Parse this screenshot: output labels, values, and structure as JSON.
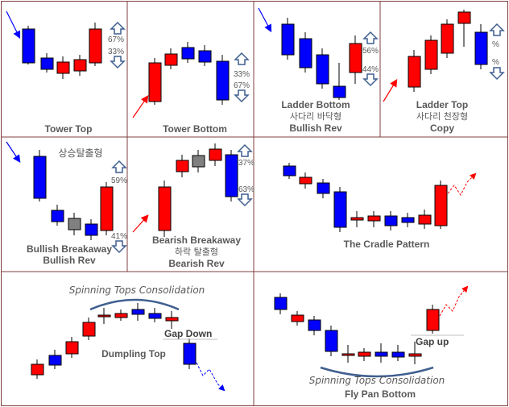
{
  "colors": {
    "bull": "#ff0000",
    "bear": "#0000ff",
    "neutral": "#808080",
    "grid": "#7f3f3f",
    "arrow": "#3f5f8f"
  },
  "panels": {
    "tower_top": {
      "caption": "Tower Top",
      "pct_up": "67%",
      "pct_down": "33%"
    },
    "tower_bottom": {
      "caption": "Tower Bottom",
      "pct_up": "33%",
      "pct_down": "67%"
    },
    "ladder_bottom": {
      "caption_en": "Ladder Bottom",
      "caption_ko": "사다리 바닥형",
      "caption_type": "Bullish Rev",
      "pct_up": "56%",
      "pct_down": "44%"
    },
    "ladder_top": {
      "caption_en": "Ladder Top",
      "caption_ko": "사다리 천장형",
      "caption_type": "Copy",
      "pct_up": "%",
      "pct_down": "%"
    },
    "bullish_breakaway": {
      "title_ko": "상승탈출형",
      "caption_en": "Bullish Breakaway",
      "caption_type": "Bullish Rev",
      "pct_up": "59%",
      "pct_down": "41%"
    },
    "bearish_breakaway": {
      "caption_en": "Bearish Breakaway",
      "caption_ko": "하락 탈출형",
      "caption_type": "Bearish Rev",
      "pct_up": "37%",
      "pct_down": "63%"
    },
    "cradle": {
      "caption": "The Cradle Pattern"
    },
    "dumpling_top": {
      "caption": "Dumpling Top",
      "label_top": "Spinning Tops Consolidation",
      "gap_label": "Gap Down"
    },
    "fly_pan_bottom": {
      "caption": "Fly Pan Bottom",
      "label_bottom": "Spinning Tops Consolidation",
      "gap_label": "Gap up"
    }
  }
}
